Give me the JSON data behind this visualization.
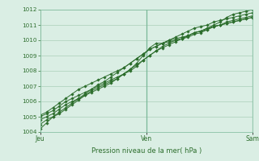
{
  "title": "",
  "xlabel": "Pression niveau de la mer( hPa )",
  "bg_color": "#daeee4",
  "plot_bg_color": "#daeee4",
  "grid_color": "#aacfb8",
  "line_color": "#2d6e2d",
  "marker_color": "#2d6e2d",
  "ylim": [
    1004,
    1012
  ],
  "yticks": [
    1004,
    1005,
    1006,
    1007,
    1008,
    1009,
    1010,
    1011,
    1012
  ],
  "x_ticks_labels": [
    "Jeu",
    "Ven",
    "Sam"
  ],
  "x_ticks_pos": [
    0.0,
    0.5,
    1.0
  ],
  "series": [
    [
      1004.2,
      1004.6,
      1005.0,
      1005.2,
      1005.5,
      1005.8,
      1006.1,
      1006.4,
      1006.6,
      1006.8,
      1007.0,
      1007.2,
      1007.5,
      1007.8,
      1008.1,
      1008.5,
      1009.0,
      1009.5,
      1009.8,
      1009.8,
      1009.9,
      1010.0,
      1010.1,
      1010.3,
      1010.5,
      1010.6,
      1010.8,
      1011.0,
      1011.2,
      1011.5,
      1011.7,
      1011.8,
      1011.9,
      1012.0
    ],
    [
      1005.0,
      1005.2,
      1005.4,
      1005.7,
      1006.0,
      1006.2,
      1006.4,
      1006.6,
      1006.8,
      1007.0,
      1007.2,
      1007.4,
      1007.6,
      1007.8,
      1008.0,
      1008.3,
      1008.7,
      1009.0,
      1009.3,
      1009.6,
      1009.8,
      1010.0,
      1010.1,
      1010.2,
      1010.4,
      1010.5,
      1010.7,
      1010.9,
      1011.0,
      1011.2,
      1011.3,
      1011.4,
      1011.5,
      1011.6
    ],
    [
      1004.8,
      1005.0,
      1005.2,
      1005.5,
      1005.8,
      1006.0,
      1006.2,
      1006.4,
      1006.7,
      1006.9,
      1007.1,
      1007.3,
      1007.5,
      1007.8,
      1008.1,
      1008.4,
      1008.7,
      1009.0,
      1009.3,
      1009.5,
      1009.7,
      1009.9,
      1010.1,
      1010.3,
      1010.5,
      1010.6,
      1010.7,
      1010.9,
      1011.0,
      1011.1,
      1011.2,
      1011.3,
      1011.4,
      1011.5
    ],
    [
      1005.1,
      1005.3,
      1005.6,
      1005.9,
      1006.2,
      1006.5,
      1006.8,
      1007.0,
      1007.2,
      1007.4,
      1007.6,
      1007.8,
      1008.0,
      1008.2,
      1008.5,
      1008.8,
      1009.1,
      1009.4,
      1009.6,
      1009.8,
      1010.0,
      1010.1,
      1010.2,
      1010.3,
      1010.5,
      1010.6,
      1010.8,
      1010.9,
      1011.0,
      1011.1,
      1011.2,
      1011.3,
      1011.4,
      1011.5
    ],
    [
      1004.5,
      1004.8,
      1005.0,
      1005.3,
      1005.6,
      1005.9,
      1006.2,
      1006.5,
      1006.8,
      1007.1,
      1007.3,
      1007.6,
      1007.9,
      1008.2,
      1008.5,
      1008.8,
      1009.1,
      1009.4,
      1009.6,
      1009.8,
      1010.0,
      1010.2,
      1010.4,
      1010.6,
      1010.8,
      1010.9,
      1011.0,
      1011.2,
      1011.3,
      1011.4,
      1011.5,
      1011.6,
      1011.7,
      1011.8
    ]
  ]
}
